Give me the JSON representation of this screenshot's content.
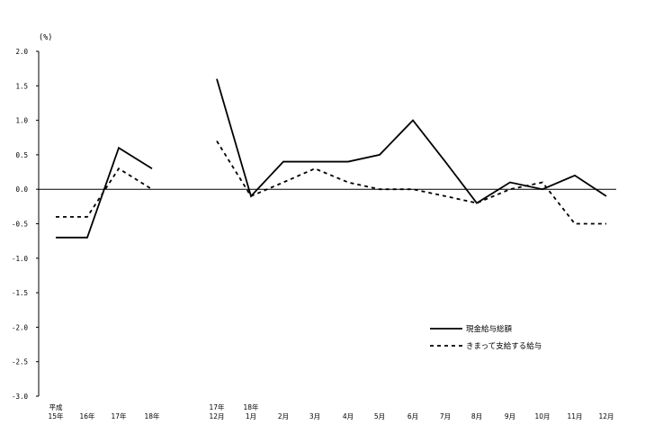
{
  "chart_data": {
    "type": "line",
    "title": "",
    "xlabel": "",
    "ylabel": "",
    "unit_label": "(%)",
    "ylim": [
      -3.0,
      2.0
    ],
    "yticks": [
      "2.0",
      "1.5",
      "1.0",
      "0.5",
      "0.0",
      "-0.5",
      "-1.0",
      "-1.5",
      "-2.0",
      "-2.5",
      "-3.0"
    ],
    "grid": false,
    "legend_position": "bottom-right",
    "categories": [
      [
        "平成",
        "15年"
      ],
      [
        "16年"
      ],
      [
        "17年"
      ],
      [
        "18年"
      ],
      [
        "17年",
        "12月"
      ],
      [
        "18年",
        "1月"
      ],
      [
        "2月"
      ],
      [
        "3月"
      ],
      [
        "4月"
      ],
      [
        "5月"
      ],
      [
        "6月"
      ],
      [
        "7月"
      ],
      [
        "8月"
      ],
      [
        "9月"
      ],
      [
        "10月"
      ],
      [
        "11月"
      ],
      [
        "12月"
      ]
    ],
    "segments": [
      [
        0,
        3
      ],
      [
        4,
        16
      ]
    ],
    "series": [
      {
        "name": "現金給与総額",
        "style": "solid",
        "values": [
          -0.7,
          -0.7,
          0.6,
          0.3,
          1.6,
          -0.1,
          0.4,
          0.4,
          0.4,
          0.5,
          1.0,
          0.4,
          -0.2,
          0.1,
          0.0,
          0.2,
          -0.1
        ]
      },
      {
        "name": "きまって支給する給与",
        "style": "dashed",
        "values": [
          -0.4,
          -0.4,
          0.3,
          0.0,
          0.7,
          -0.1,
          0.1,
          0.3,
          0.1,
          0.0,
          0.0,
          -0.1,
          -0.2,
          0.0,
          0.1,
          -0.5,
          -0.5
        ]
      }
    ]
  }
}
